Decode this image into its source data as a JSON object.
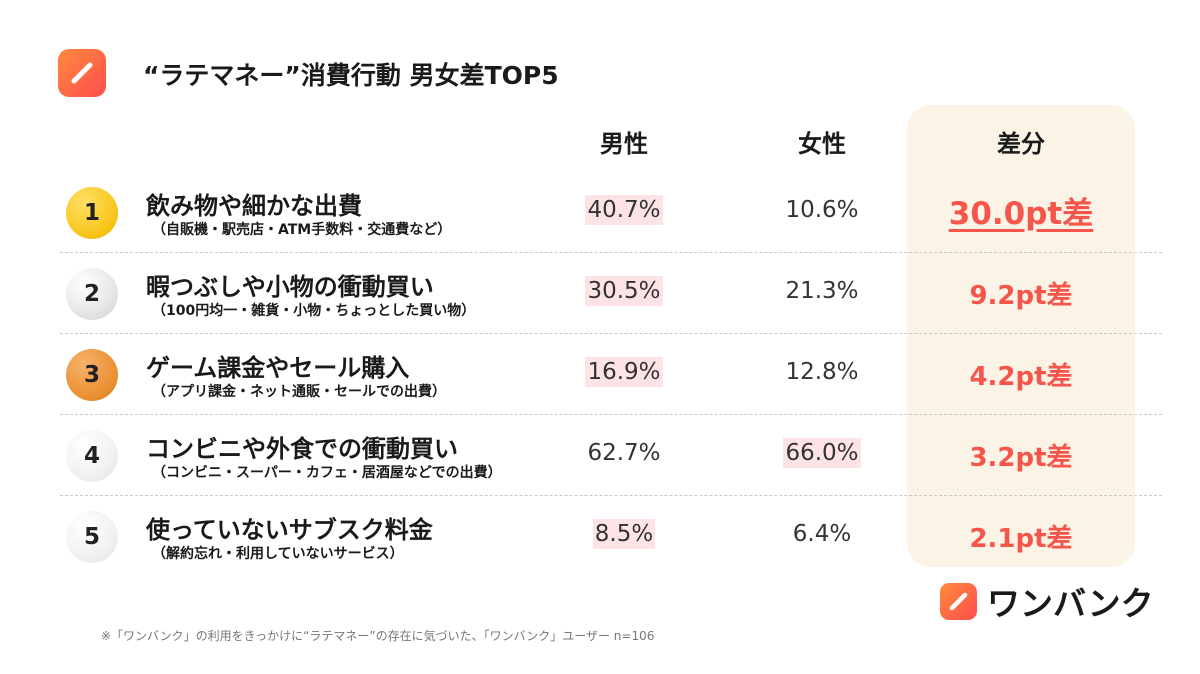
{
  "title": "“ラテマネー”消費行動 男女差TOP5",
  "columns": {
    "male": "男性",
    "female": "女性",
    "diff": "差分"
  },
  "brand": {
    "name": "ワンバンク",
    "logo_icon": "pencil-slash-icon",
    "accent": "#ff5a3c"
  },
  "footnote": "※「ワンバンク」の利用をきっかけに“ラテマネー”の存在に気づいた、「ワンバンク」ユーザー n=106",
  "colors": {
    "diff_text": "#f5554a",
    "highlight": "#fde3e6",
    "diff_panel": "#fbf4e6"
  },
  "chart_data": {
    "type": "table",
    "rows": [
      {
        "rank": "1",
        "name": "飲み物や細かな出費",
        "sub": "（自販機・駅売店・ATM手数料・交通費など）",
        "male": "40.7%",
        "female": "10.6%",
        "diff": "30.0pt差",
        "higher": "male"
      },
      {
        "rank": "2",
        "name": "暇つぶしや小物の衝動買い",
        "sub": "（100円均一・雑貨・小物・ちょっとした買い物）",
        "male": "30.5%",
        "female": "21.3%",
        "diff": "9.2pt差",
        "higher": "male"
      },
      {
        "rank": "3",
        "name": "ゲーム課金やセール購入",
        "sub": "（アプリ課金・ネット通販・セールでの出費）",
        "male": "16.9%",
        "female": "12.8%",
        "diff": "4.2pt差",
        "higher": "male"
      },
      {
        "rank": "4",
        "name": "コンビニや外食での衝動買い",
        "sub": "（コンビニ・スーパー・カフェ・居酒屋などでの出費）",
        "male": "62.7%",
        "female": "66.0%",
        "diff": "3.2pt差",
        "higher": "female"
      },
      {
        "rank": "5",
        "name": "使っていないサブスク料金",
        "sub": "（解約忘れ・利用していないサービス）",
        "male": "8.5%",
        "female": "6.4%",
        "diff": "2.1pt差",
        "higher": "male"
      }
    ]
  }
}
